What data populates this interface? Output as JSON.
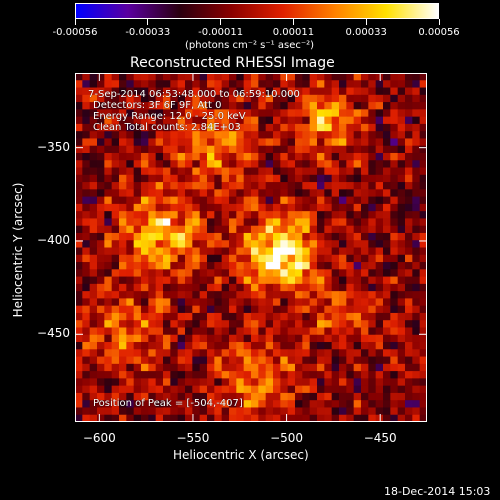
{
  "colorbar": {
    "ticks": [
      "-0.00056",
      "-0.00033",
      "-0.00011",
      "0.00011",
      "0.00033",
      "0.00056"
    ],
    "units": "(photons cm⁻² s⁻¹ asec⁻²)",
    "range": [
      -0.00056,
      0.00056
    ]
  },
  "chart_data": {
    "type": "heatmap",
    "title": "Reconstructed RHESSI Image",
    "xlabel": "Heliocentric X (arcsec)",
    "ylabel": "Heliocentric Y (arcsec)",
    "xlim": [
      -613,
      -425
    ],
    "ylim": [
      -497,
      -310
    ],
    "xticks": [
      -600,
      -550,
      -500,
      -450
    ],
    "yticks": [
      -350,
      -400,
      -450
    ],
    "xtick_labels": [
      "−600",
      "−550",
      "−500",
      "−450"
    ],
    "ytick_labels": [
      "−350",
      "−400",
      "−450"
    ],
    "colorscale": [
      "#0000ff",
      "#5a00a0",
      "#2a0010",
      "#8a0000",
      "#e02000",
      "#ff8000",
      "#ffe000",
      "#ffffff"
    ],
    "peak": [
      -504,
      -407
    ],
    "annotations": {
      "time_range": "7-Sep-2014 06:53:48.000 to 06:59:10.000",
      "detectors": "Detectors: 3F 6F 9F, Att 0",
      "energy": "Energy Range: 12.0 - 25.0 keV",
      "clean": "Clean     Total counts: 2.84E+03",
      "peak_label": "Position of Peak = [-504,-407]"
    }
  },
  "footer": {
    "timestamp": "18-Dec-2014 15:03"
  }
}
